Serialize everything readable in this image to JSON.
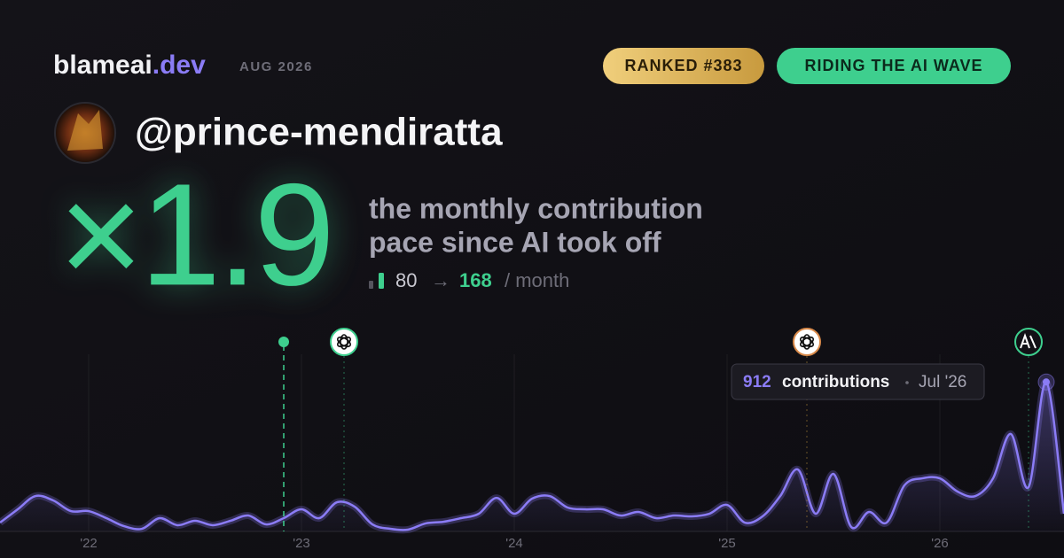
{
  "header": {
    "brand": "blameai",
    "brand_suffix": ".dev",
    "period": "AUG 2026",
    "badges": [
      "RANKED #383",
      "RIDING THE AI WAVE"
    ]
  },
  "user": {
    "handle": "@prince-mendiratta"
  },
  "stat": {
    "multiplier": "×1.9",
    "caption": [
      "the monthly contribution",
      "pace since AI took off"
    ],
    "before": 80,
    "arrow": "→",
    "after": 168,
    "unit": "/ month"
  },
  "chart_data": {
    "type": "line",
    "categories": [
      null,
      null,
      null,
      null,
      null,
      "'22",
      null,
      null,
      null,
      null,
      null,
      null,
      null,
      null,
      null,
      null,
      null,
      "'23",
      null,
      null,
      null,
      null,
      null,
      null,
      null,
      null,
      null,
      null,
      null,
      "'24",
      null,
      null,
      null,
      null,
      null,
      null,
      null,
      null,
      null,
      null,
      null,
      "'25",
      null,
      null,
      null,
      null,
      null,
      null,
      null,
      null,
      null,
      null,
      null,
      "'26",
      null,
      null,
      null,
      null,
      null,
      null,
      null
    ],
    "values": [
      54,
      135,
      216,
      189,
      124,
      124,
      81,
      32,
      16,
      81,
      38,
      65,
      38,
      65,
      97,
      43,
      81,
      135,
      81,
      178,
      151,
      43,
      16,
      11,
      49,
      59,
      81,
      108,
      205,
      108,
      200,
      216,
      146,
      135,
      135,
      97,
      119,
      81,
      97,
      92,
      108,
      162,
      54,
      92,
      216,
      378,
      108,
      351,
      27,
      119,
      54,
      281,
      324,
      324,
      243,
      216,
      324,
      595,
      270,
      912,
      108
    ],
    "color": "#8b7cf6",
    "ylim": [
      0,
      1000
    ],
    "tooltip": {
      "label": "contributions",
      "date": "Jul '26"
    }
  }
}
